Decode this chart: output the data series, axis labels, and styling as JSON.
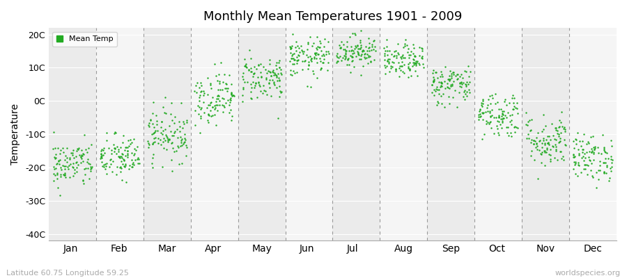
{
  "title": "Monthly Mean Temperatures 1901 - 2009",
  "ylabel": "Temperature",
  "subtitle_left": "Latitude 60.75 Longitude 59.25",
  "subtitle_right": "worldspecies.org",
  "legend_label": "Mean Temp",
  "month_labels": [
    "Jan",
    "Feb",
    "Mar",
    "Apr",
    "May",
    "Jun",
    "Jul",
    "Aug",
    "Sep",
    "Oct",
    "Nov",
    "Dec"
  ],
  "yticks": [
    -40,
    -30,
    -20,
    -10,
    0,
    10,
    20
  ],
  "ytick_labels": [
    "-40C",
    "-30C",
    "-20C",
    "-10C",
    "0C",
    "10C",
    "20C"
  ],
  "ylim": [
    -42,
    22
  ],
  "background_color": "#ffffff",
  "plot_bg_color": "#ffffff",
  "band_color_light": "#ebebeb",
  "band_color_white": "#f5f5f5",
  "dot_color": "#22aa22",
  "dot_size": 3,
  "monthly_means": [
    -19,
    -17,
    -10,
    1,
    7,
    13,
    15,
    12,
    5,
    -4,
    -12,
    -17
  ],
  "monthly_stds": [
    3.5,
    3.5,
    4.0,
    4.0,
    3.5,
    3.0,
    2.5,
    2.5,
    3.0,
    3.5,
    4.0,
    3.5
  ],
  "n_years": 109,
  "seed": 42
}
